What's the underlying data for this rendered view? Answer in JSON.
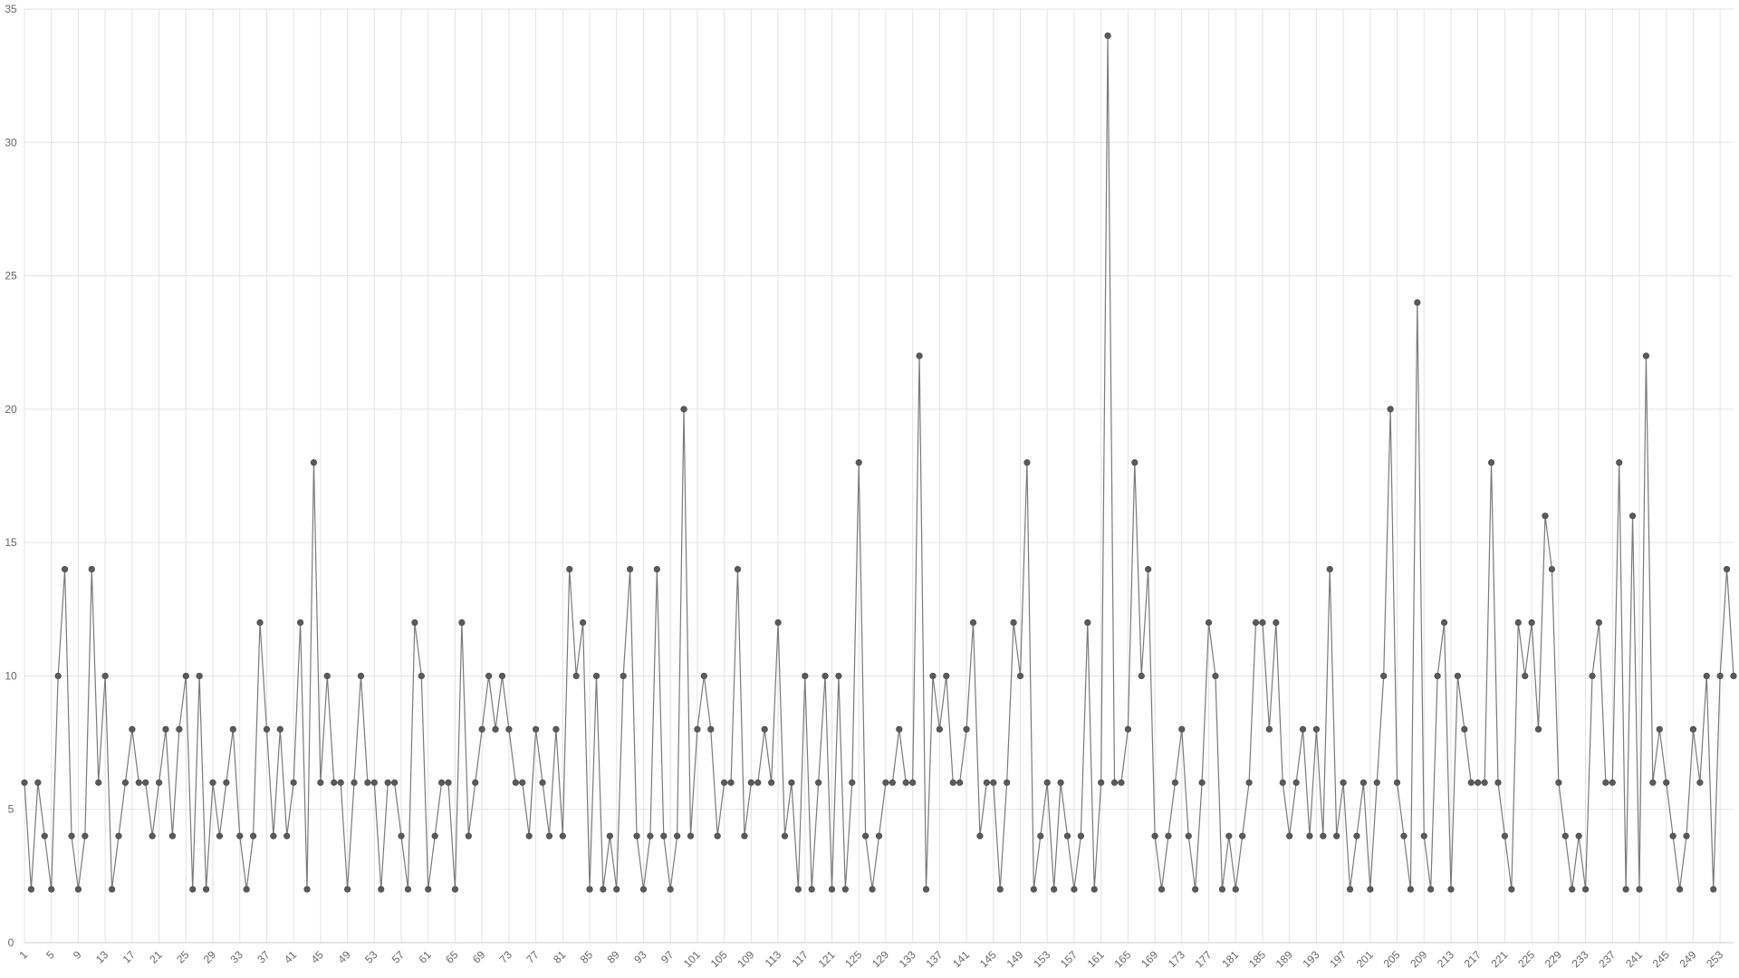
{
  "chart_data": {
    "type": "line",
    "x": [
      1,
      2,
      3,
      4,
      5,
      6,
      7,
      8,
      9,
      10,
      11,
      12,
      13,
      14,
      15,
      16,
      17,
      18,
      19,
      20,
      21,
      22,
      23,
      24,
      25,
      26,
      27,
      28,
      29,
      30,
      31,
      32,
      33,
      34,
      35,
      36,
      37,
      38,
      39,
      40,
      41,
      42,
      43,
      44,
      45,
      46,
      47,
      48,
      49,
      50,
      51,
      52,
      53,
      54,
      55,
      56,
      57,
      58,
      59,
      60,
      61,
      62,
      63,
      64,
      65,
      66,
      67,
      68,
      69,
      70,
      71,
      72,
      73,
      74,
      75,
      76,
      77,
      78,
      79,
      80,
      81,
      82,
      83,
      84,
      85,
      86,
      87,
      88,
      89,
      90,
      91,
      92,
      93,
      94,
      95,
      96,
      97,
      98,
      99,
      100,
      101,
      102,
      103,
      104,
      105,
      106,
      107,
      108,
      109,
      110,
      111,
      112,
      113,
      114,
      115,
      116,
      117,
      118,
      119,
      120,
      121,
      122,
      123,
      124,
      125,
      126,
      127,
      128,
      129,
      130,
      131,
      132,
      133,
      134,
      135,
      136,
      137,
      138,
      139,
      140,
      141,
      142,
      143,
      144,
      145,
      146,
      147,
      148,
      149,
      150,
      151,
      152,
      153,
      154,
      155,
      156,
      157,
      158,
      159,
      160,
      161,
      162,
      163,
      164,
      165,
      166,
      167,
      168,
      169,
      170,
      171,
      172,
      173,
      174,
      175,
      176,
      177,
      178,
      179,
      180,
      181,
      182,
      183,
      184,
      185,
      186,
      187,
      188,
      189,
      190,
      191,
      192,
      193,
      194,
      195,
      196,
      197,
      198,
      199,
      200,
      201,
      202,
      203,
      204,
      205,
      206,
      207,
      208,
      209,
      210,
      211,
      212,
      213,
      214,
      215,
      216,
      217,
      218,
      219,
      220,
      221,
      222,
      223,
      224,
      225,
      226,
      227,
      228,
      229,
      230,
      231,
      232,
      233,
      234,
      235,
      236,
      237,
      238,
      239,
      240,
      241,
      242,
      243,
      244,
      245,
      246,
      247,
      248,
      249,
      250,
      251,
      252,
      253,
      254,
      255
    ],
    "values": [
      6,
      2,
      6,
      4,
      2,
      10,
      14,
      4,
      2,
      4,
      14,
      6,
      10,
      2,
      4,
      6,
      8,
      6,
      6,
      4,
      6,
      8,
      4,
      8,
      10,
      2,
      10,
      2,
      6,
      4,
      6,
      8,
      4,
      2,
      4,
      12,
      8,
      4,
      8,
      4,
      6,
      12,
      2,
      18,
      6,
      10,
      6,
      6,
      2,
      6,
      10,
      6,
      6,
      2,
      6,
      6,
      4,
      2,
      12,
      10,
      2,
      4,
      6,
      6,
      2,
      12,
      4,
      6,
      8,
      10,
      8,
      10,
      8,
      6,
      6,
      4,
      8,
      6,
      4,
      8,
      4,
      14,
      10,
      12,
      2,
      10,
      2,
      4,
      2,
      10,
      14,
      4,
      2,
      4,
      14,
      4,
      2,
      4,
      20,
      4,
      8,
      10,
      8,
      4,
      6,
      6,
      14,
      4,
      6,
      6,
      8,
      6,
      12,
      4,
      6,
      2,
      10,
      2,
      6,
      10,
      2,
      10,
      2,
      6,
      18,
      4,
      2,
      4,
      6,
      6,
      8,
      6,
      6,
      22,
      2,
      10,
      8,
      10,
      6,
      6,
      8,
      12,
      4,
      6,
      6,
      2,
      6,
      12,
      10,
      18,
      2,
      4,
      6,
      2,
      6,
      4,
      2,
      4,
      12,
      2,
      6,
      34,
      6,
      6,
      8,
      18,
      10,
      14,
      4,
      2,
      4,
      6,
      8,
      4,
      2,
      6,
      12,
      10,
      2,
      4,
      2,
      4,
      6,
      12,
      12,
      8,
      12,
      6,
      4,
      6,
      8,
      4,
      8,
      4,
      14,
      4,
      6,
      2,
      4,
      6,
      2,
      6,
      10,
      20,
      6,
      4,
      2,
      24,
      4,
      2,
      10,
      12,
      2,
      10,
      8,
      6,
      6,
      6,
      18,
      6,
      4,
      2,
      12,
      10,
      12,
      8,
      16,
      14,
      6,
      4,
      2,
      4,
      2,
      10,
      12,
      6,
      6,
      18,
      2,
      16,
      2,
      22,
      6,
      8,
      6,
      4,
      2,
      4,
      8,
      6,
      10,
      2,
      10,
      14,
      10
    ],
    "color": "#7a7a7a",
    "marker_color": "#5a5a5a",
    "xlim": [
      1,
      255
    ],
    "xticks": [
      1,
      5,
      9,
      13,
      17,
      21,
      25,
      29,
      33,
      37,
      41,
      45,
      49,
      53,
      57,
      61,
      65,
      69,
      73,
      77,
      81,
      85,
      89,
      93,
      97,
      101,
      105,
      109,
      113,
      117,
      121,
      125,
      129,
      133,
      137,
      141,
      145,
      149,
      153,
      157,
      161,
      165,
      169,
      173,
      177,
      181,
      185,
      189,
      193,
      197,
      201,
      205,
      209,
      213,
      217,
      221,
      225,
      229,
      233,
      237,
      241,
      245,
      249,
      253
    ],
    "ylim": [
      0,
      35
    ],
    "yticks": [
      0,
      5,
      10,
      15,
      20,
      25,
      30,
      35
    ],
    "grid": true
  }
}
